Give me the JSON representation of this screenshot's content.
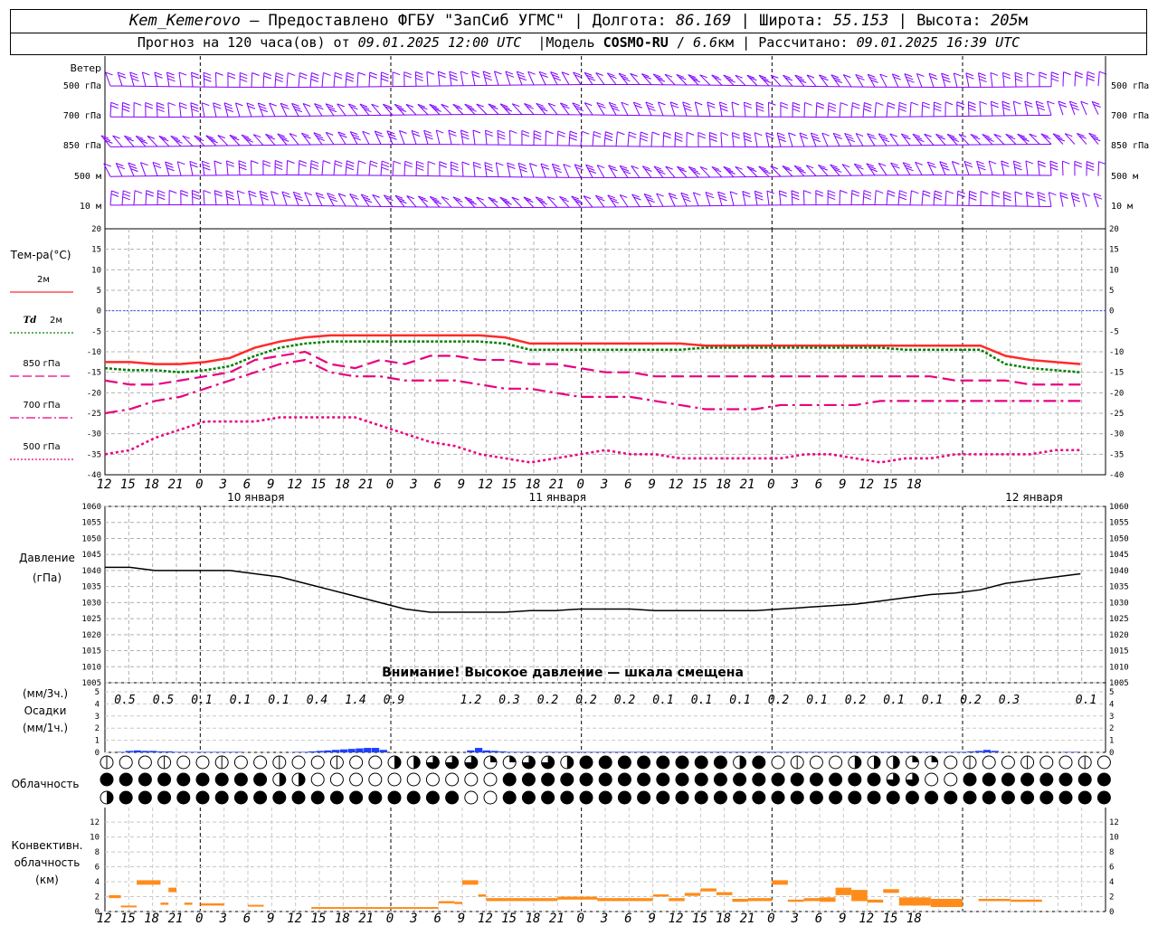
{
  "header": {
    "station": "Kem_Kemerovo",
    "provider": "— Предоставлено ФГБУ \"ЗапСиб УГМС\"",
    "lon_label": "Долгота:",
    "lon": "86.169",
    "lat_label": "Широта:",
    "lat": "55.153",
    "alt_label": "Высота:",
    "alt": "205",
    "alt_unit": "м",
    "forecast_prefix": "Прогноз на 120 часа(ов) от",
    "forecast_start": "09.01.2025 12:00 UTC",
    "model_label": "Модель",
    "model": "COSMO-RU",
    "model_res": "6.6",
    "model_res_unit": "км",
    "computed_label": "Рассчитано:",
    "computed": "09.01.2025 16:39 UTC"
  },
  "labels": {
    "wind_title": "Ветер",
    "wind_levels": [
      "500 гПа",
      "700 гПа",
      "850 гПа",
      "500 м",
      "10  м"
    ],
    "temp_title": "Тем-ра(°C)",
    "legend": [
      {
        "text": "2м",
        "color": "#ff2a2a",
        "style": "solid"
      },
      {
        "text": "Td 2м",
        "color": "#008000",
        "style": "dot"
      },
      {
        "text": "850 гПа",
        "color": "#e8007f",
        "style": "dash"
      },
      {
        "text": "700 гПа",
        "color": "#e8007f",
        "style": "dashdot"
      },
      {
        "text": "500 гПа",
        "color": "#e8007f",
        "style": "dot"
      }
    ],
    "pressure_title": "Давление",
    "pressure_unit": "(гПа)",
    "pressure_note": "Внимание! Высокое давление — шкала смещена",
    "precip_unit_3h": "(мм/3ч.)",
    "precip_title": "Осадки",
    "precip_unit_1h": "(мм/1ч.)",
    "cloud_title": "Облачность",
    "conv_title_1": "Конвективн.",
    "conv_title_2": "облачность",
    "conv_unit": "(км)",
    "days": [
      "10 января",
      "11 января",
      "12 января"
    ]
  },
  "chart_data": [
    {
      "type": "wind_barbs",
      "levels": [
        "500 гПа",
        "700 гПа",
        "850 гПа",
        "500 м",
        "10 м"
      ],
      "color": "#8000ff"
    },
    {
      "type": "line",
      "title": "Тем-ра(°C)",
      "x_hours_from_start": [
        0,
        3,
        6,
        9,
        12,
        15,
        18,
        21,
        24,
        27,
        30,
        33,
        36,
        39,
        42,
        45,
        48,
        51,
        54,
        57,
        60,
        63,
        66,
        69,
        72,
        75,
        78,
        81,
        84,
        87,
        90,
        93,
        96,
        99,
        102,
        105,
        108,
        111,
        114,
        117
      ],
      "x_tick_labels": [
        "12",
        "15",
        "18",
        "21",
        "0",
        "3",
        "6",
        "9",
        "12",
        "15",
        "18",
        "21",
        "0",
        "3",
        "6",
        "9",
        "12",
        "15",
        "18",
        "21",
        "0",
        "3",
        "6",
        "9",
        "12",
        "15",
        "18",
        "21",
        "0",
        "3",
        "6",
        "9",
        "12",
        "15",
        "18"
      ],
      "ylim": [
        -40,
        20
      ],
      "yticks": [
        20,
        15,
        10,
        5,
        0,
        -5,
        -10,
        -15,
        -20,
        -25,
        -30,
        -35,
        -40
      ],
      "series": [
        {
          "name": "2м",
          "values": [
            -12.5,
            -12.5,
            -13,
            -13,
            -12.5,
            -11.5,
            -9,
            -7.5,
            -6.5,
            -6,
            -6,
            -6,
            -6,
            -6,
            -6,
            -6,
            -6.5,
            -8,
            -8,
            -8,
            -8,
            -8,
            -8,
            -8,
            -8.5,
            -8.5,
            -8.5,
            -8.5,
            -8.5,
            -8.5,
            -8.5,
            -8.5,
            -8.5,
            -8.5,
            -8.5,
            -8.5,
            -11,
            -12,
            -12.5,
            -13
          ]
        },
        {
          "name": "Td 2м",
          "values": [
            -14,
            -14.5,
            -14.5,
            -15,
            -14.5,
            -13.5,
            -11,
            -9,
            -8,
            -7.5,
            -7.5,
            -7.5,
            -7.5,
            -7.5,
            -7.5,
            -7.5,
            -8,
            -9.5,
            -9.5,
            -9.5,
            -9.5,
            -9.5,
            -9.5,
            -9.5,
            -9,
            -9,
            -9,
            -9,
            -9,
            -9,
            -9,
            -9,
            -9.5,
            -9.5,
            -9.5,
            -9.5,
            -13,
            -14,
            -14.5,
            -15
          ]
        },
        {
          "name": "850 гПа",
          "values": [
            -17,
            -18,
            -18,
            -17,
            -16,
            -15,
            -12,
            -11,
            -10,
            -13,
            -14,
            -12,
            -13,
            -11,
            -11,
            -12,
            -12,
            -13,
            -13,
            -14,
            -15,
            -15,
            -16,
            -16,
            -16,
            -16,
            -16,
            -16,
            -16,
            -16,
            -16,
            -16,
            -16,
            -16,
            -17,
            -17,
            -17,
            -18,
            -18,
            -18
          ]
        },
        {
          "name": "700 гПа",
          "values": [
            -25,
            -24,
            -22,
            -21,
            -19,
            -17,
            -15,
            -13,
            -12,
            -15,
            -16,
            -16,
            -17,
            -17,
            -17,
            -18,
            -19,
            -19,
            -20,
            -21,
            -21,
            -21,
            -22,
            -23,
            -24,
            -24,
            -24,
            -23,
            -23,
            -23,
            -23,
            -22,
            -22,
            -22,
            -22,
            -22,
            -22,
            -22,
            -22,
            -22
          ]
        },
        {
          "name": "500 гПа",
          "values": [
            -35,
            -34,
            -31,
            -29,
            -27,
            -27,
            -27,
            -26,
            -26,
            -26,
            -26,
            -28,
            -30,
            -32,
            -33,
            -35,
            -36,
            -37,
            -36,
            -35,
            -34,
            -35,
            -35,
            -36,
            -36,
            -36,
            -36,
            -36,
            -35,
            -35,
            -36,
            -37,
            -36,
            -36,
            -35,
            -35,
            -35,
            -35,
            -34,
            -34
          ]
        }
      ],
      "reference_line": 0
    },
    {
      "type": "line",
      "title": "Давление",
      "ylabel": "(гПа)",
      "ylim": [
        1005,
        1060
      ],
      "yticks": [
        1060,
        1055,
        1050,
        1045,
        1040,
        1035,
        1030,
        1025,
        1020,
        1015,
        1010,
        1005
      ],
      "x_hours_from_start": [
        0,
        3,
        6,
        9,
        12,
        15,
        18,
        21,
        24,
        27,
        30,
        33,
        36,
        39,
        42,
        45,
        48,
        51,
        54,
        57,
        60,
        63,
        66,
        69,
        72,
        75,
        78,
        81,
        84,
        87,
        90,
        93,
        96,
        99,
        102,
        105,
        108,
        111,
        114,
        117
      ],
      "series": [
        {
          "name": "Давление",
          "values": [
            1041,
            1041,
            1040,
            1040,
            1040,
            1040,
            1039,
            1038,
            1036,
            1034,
            1032,
            1030,
            1028,
            1027,
            1027,
            1027,
            1027,
            1027.5,
            1027.5,
            1028,
            1028,
            1028,
            1027.5,
            1027.5,
            1027.5,
            1027.5,
            1027.5,
            1028,
            1028.5,
            1029,
            1029.5,
            1030.5,
            1031.5,
            1032.5,
            1033,
            1034,
            1036,
            1037,
            1038,
            1039
          ]
        }
      ]
    },
    {
      "type": "bar",
      "title": "Осадки",
      "ylim": [
        0,
        5
      ],
      "yticks": [
        5,
        4,
        3,
        2,
        1,
        0
      ],
      "three_hour_totals": [
        "0.5",
        "0.5",
        "0.1",
        "0.1",
        "0.1",
        "0.4",
        "1.4",
        "0.9",
        "",
        "1.2",
        "0.3",
        "0.2",
        "0.2",
        "0.2",
        "0.1",
        "0.1",
        "0.1",
        "0.2",
        "0.1",
        "0.2",
        "0.1",
        "0.1",
        "0.2",
        "0.3",
        "",
        "0.1"
      ],
      "hourly_values": [
        0.1,
        0.3,
        0.4,
        0.3,
        0.3,
        0.2,
        0.2,
        0.1,
        0.1,
        0.1,
        0.1,
        0.1,
        0.1,
        0.1,
        0.1,
        0.1,
        0,
        0,
        0,
        0,
        0,
        0,
        0.1,
        0.1,
        0.2,
        0.3,
        0.4,
        0.5,
        0.6,
        0.7,
        0.8,
        0.9,
        0.9,
        0.5,
        0,
        0,
        0,
        0,
        0,
        0,
        0,
        0,
        0,
        0,
        0.4,
        0.9,
        0.4,
        0.3,
        0.2,
        0.1,
        0.1,
        0.1,
        0.1,
        0.1,
        0.1,
        0.1,
        0.1,
        0.1,
        0.1,
        0.1,
        0.1,
        0.1,
        0.1,
        0.1,
        0.1,
        0.1,
        0.1,
        0.1,
        0.1,
        0.1,
        0.1,
        0.1,
        0.1,
        0.1,
        0.1,
        0.1,
        0.1,
        0.1,
        0.1,
        0.1,
        0.1,
        0.1,
        0.1,
        0.1,
        0.1,
        0.1,
        0.1,
        0.1,
        0.1,
        0.1,
        0.1,
        0.1,
        0.1,
        0.1,
        0.1,
        0.1,
        0.1,
        0.1,
        0.1,
        0.1,
        0.1,
        0.1,
        0.1,
        0.1,
        0.1,
        0.1,
        0.1,
        0.2,
        0.3,
        0.5,
        0.3,
        0,
        0,
        0,
        0,
        0,
        0,
        0,
        0,
        0.1,
        0.1,
        0
      ],
      "color": "#1f3fff"
    },
    {
      "type": "table",
      "title": "Облачность",
      "rows": 3,
      "note": "cloud cover symbols (empty/quarter/half/three-quarter/full circles)"
    },
    {
      "type": "bar",
      "title": "Конвективн. облачность",
      "ylabel": "(км)",
      "ylim": [
        0,
        13
      ],
      "yticks": [
        12,
        10,
        8,
        6,
        4,
        2,
        0
      ],
      "color": "#ff8c1a"
    }
  ]
}
